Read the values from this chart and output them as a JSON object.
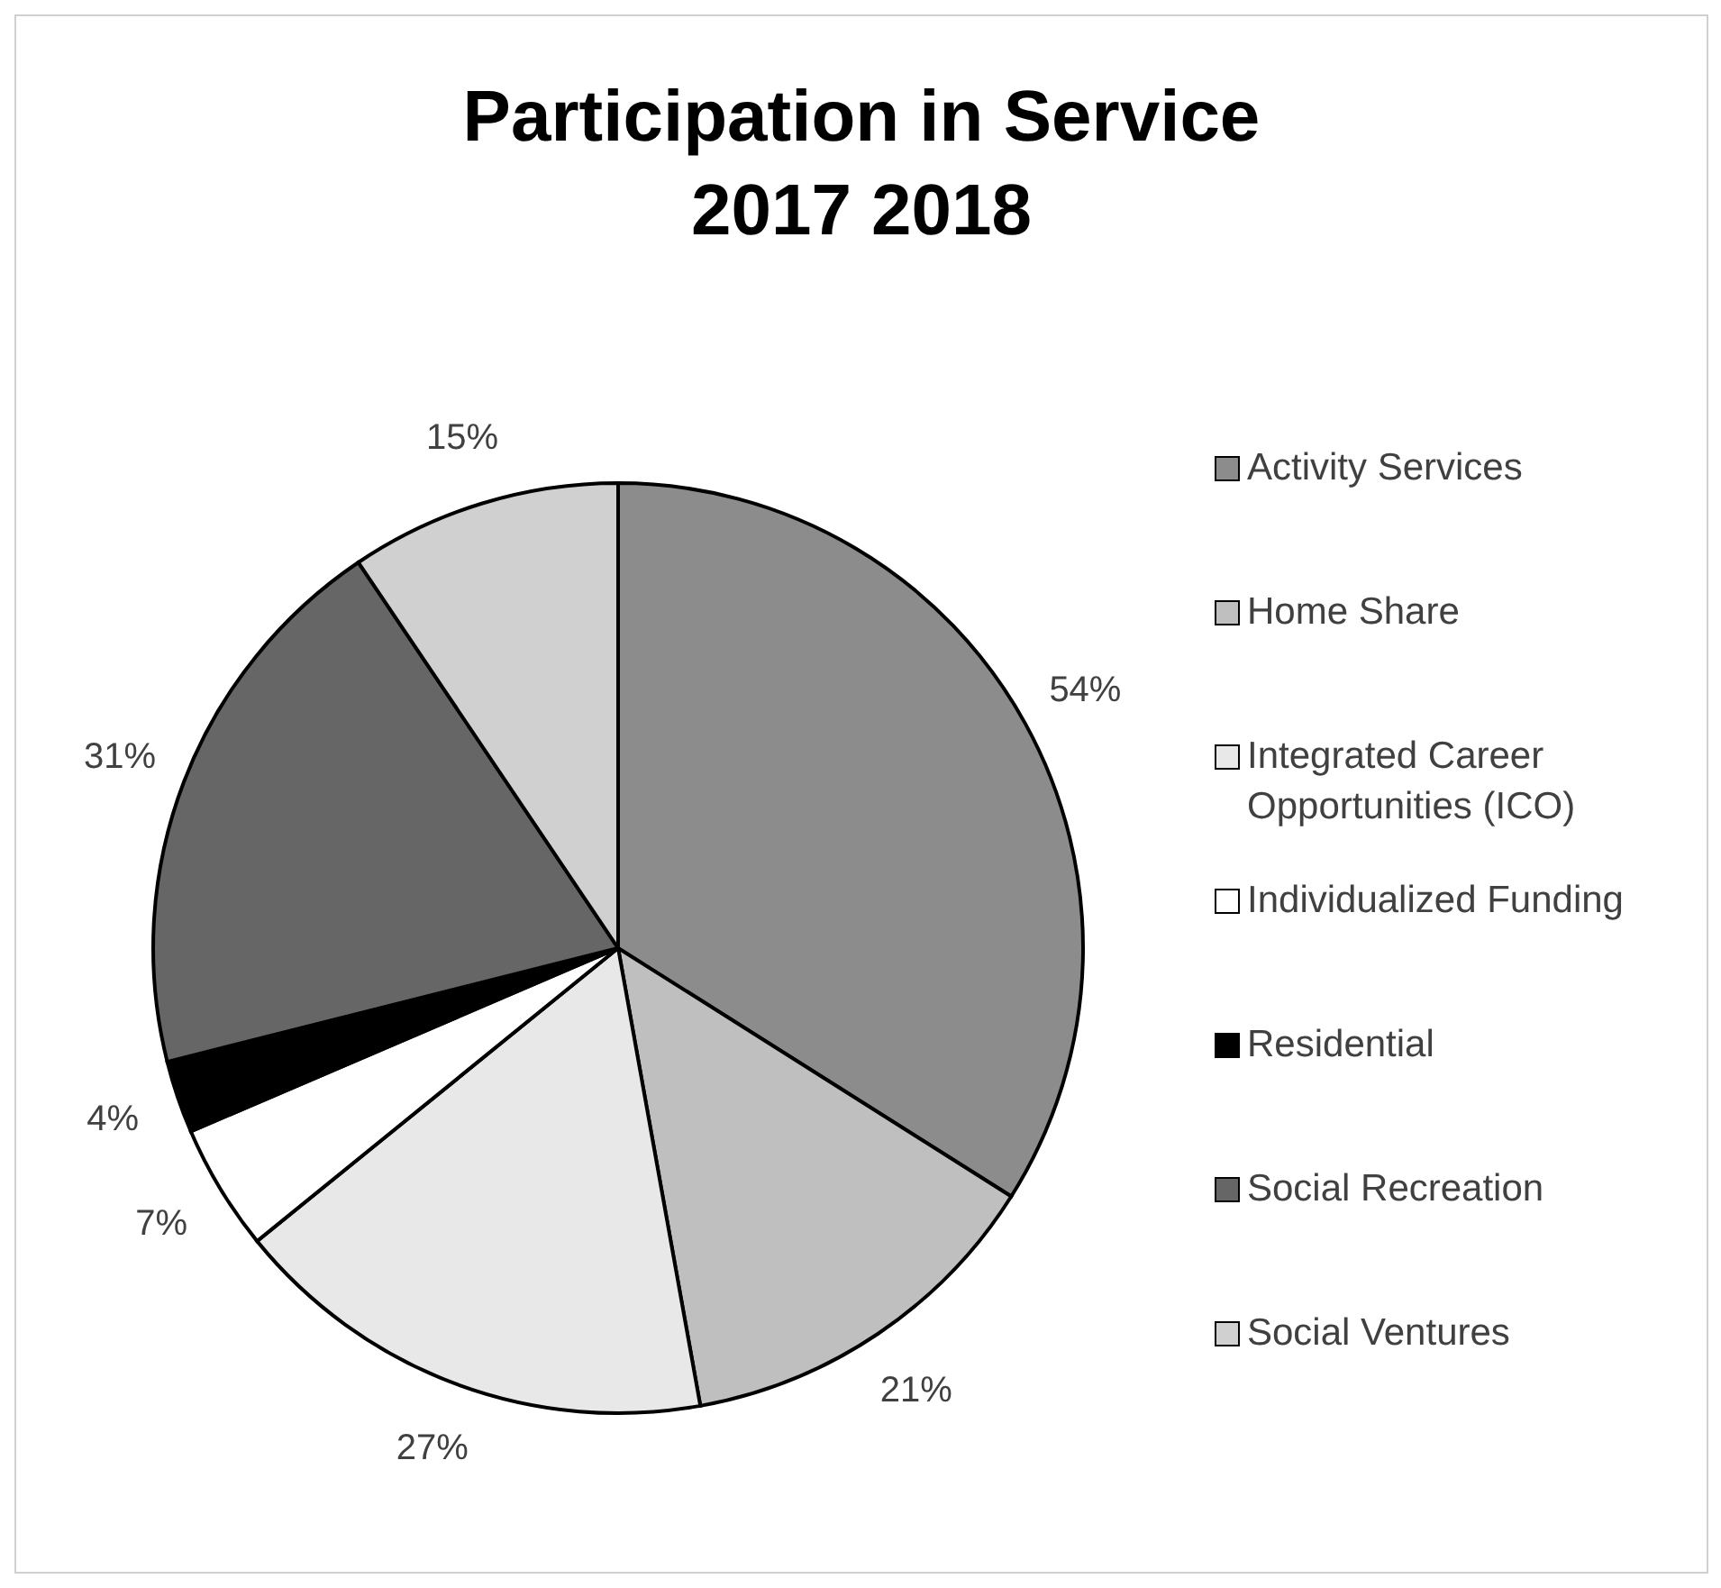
{
  "chart_data": {
    "type": "pie",
    "title": "Participation in Service\n2017 2018",
    "categories": [
      "Activity Services",
      "Home Share",
      "Integrated Career Opportunities (ICO)",
      "Individualized Funding",
      "Residential",
      "Social Recreation",
      "Social Ventures"
    ],
    "values": [
      54,
      21,
      27,
      7,
      4,
      31,
      15
    ],
    "value_labels": [
      "54%",
      "21%",
      "27%",
      "7%",
      "4%",
      "31%",
      "15%"
    ],
    "colors": [
      "#8c8c8c",
      "#bfbfbf",
      "#e8e8e8",
      "#ffffff",
      "#000000",
      "#666666",
      "#d0d0d0"
    ],
    "legend": "right"
  }
}
